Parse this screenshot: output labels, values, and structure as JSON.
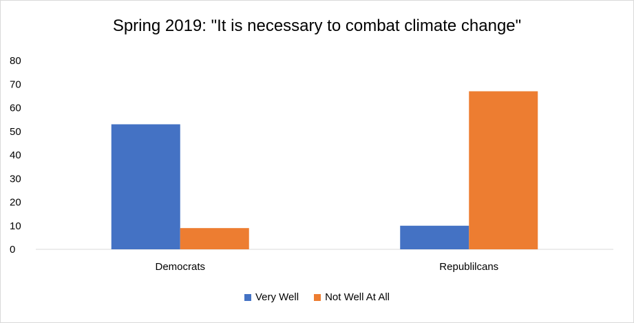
{
  "chart_data": {
    "type": "bar",
    "title": "Spring 2019: \"It is necessary to combat climate change\"",
    "categories": [
      "Democrats",
      "Republilcans"
    ],
    "series": [
      {
        "name": "Very Well",
        "values": [
          53,
          10
        ],
        "color": "#4472c4"
      },
      {
        "name": "Not Well At All",
        "values": [
          9,
          67
        ],
        "color": "#ed7d31"
      }
    ],
    "ylim": [
      0,
      80
    ],
    "yticks": [
      0,
      10,
      20,
      30,
      40,
      50,
      60,
      70,
      80
    ],
    "xlabel": "",
    "ylabel": "",
    "grid": false,
    "legend_position": "bottom"
  }
}
